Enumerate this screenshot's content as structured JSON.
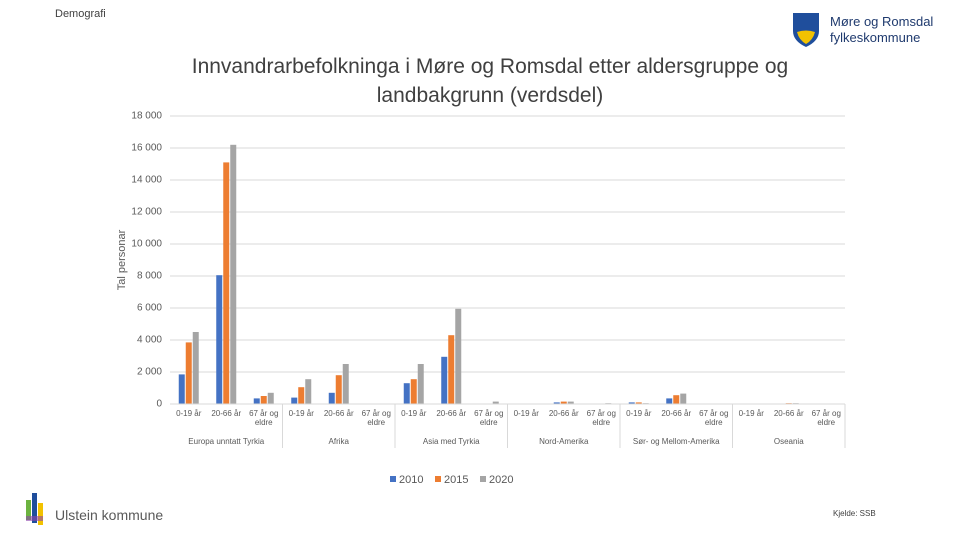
{
  "header": {
    "section": "Demografi",
    "logo_text": "Møre og Romsdal fylkeskommune"
  },
  "footer": {
    "municipality": "Ulstein kommune",
    "source": "Kjelde: SSB"
  },
  "chart_data": {
    "type": "bar",
    "title": "Innvandrarbefolkninga i Møre og Romsdal etter aldersgruppe og landbakgrunn (verdsdel)",
    "y_label": "Tal personar",
    "category_groups": [
      "Europa unntatt Tyrkia",
      "Afrika",
      "Asia med Tyrkia",
      "Nord-Amerika",
      "Sør- og Mellom-Amerika",
      "Oseania"
    ],
    "categories": [
      "0-19 år",
      "20-66 år",
      "67 år og eldre",
      "0-19 år",
      "20-66 år",
      "67 år og eldre",
      "0-19 år",
      "20-66 år",
      "67 år og eldre",
      "0-19 år",
      "20-66 år",
      "67 år og eldre",
      "0-19 år",
      "20-66 år",
      "67 år og eldre",
      "0-19 år",
      "20-66 år",
      "67 år og eldre"
    ],
    "series": [
      {
        "name": "2010",
        "color": "#4472c4",
        "values": [
          1850,
          8050,
          350,
          400,
          700,
          0,
          1300,
          2950,
          0,
          0,
          100,
          0,
          100,
          350,
          0,
          0,
          0,
          0
        ]
      },
      {
        "name": "2015",
        "color": "#ed7d31",
        "values": [
          3850,
          15100,
          500,
          1050,
          1800,
          0,
          1550,
          4300,
          0,
          0,
          150,
          0,
          100,
          550,
          0,
          0,
          50,
          0
        ]
      },
      {
        "name": "2020",
        "color": "#a5a5a5",
        "values": [
          4500,
          16200,
          700,
          1550,
          2500,
          0,
          2500,
          5950,
          150,
          0,
          150,
          50,
          50,
          650,
          0,
          0,
          50,
          0
        ]
      }
    ],
    "ylim": [
      0,
      18000
    ],
    "yticks": [
      0,
      {
        "value": 2000,
        "label": "2 000"
      },
      {
        "value": 4000,
        "label": "4 000"
      },
      {
        "value": 6000,
        "label": "6 000"
      },
      {
        "value": 8000,
        "label": "8 000"
      },
      {
        "value": 10000,
        "label": "10 000"
      },
      {
        "value": 12000,
        "label": "12 000"
      },
      {
        "value": 14000,
        "label": "14 000"
      },
      {
        "value": 16000,
        "label": "16 000"
      },
      {
        "value": 18000,
        "label": "18 000"
      }
    ],
    "grid": true,
    "legend": "bottom"
  }
}
